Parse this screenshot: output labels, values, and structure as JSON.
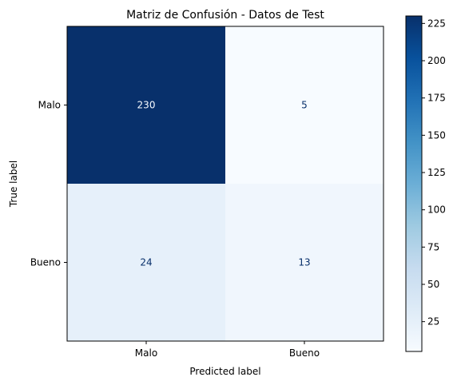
{
  "chart_data": {
    "type": "heatmap",
    "title": "Matriz de Confusión - Datos de Test",
    "xlabel": "Predicted label",
    "ylabel": "True label",
    "x_categories": [
      "Malo",
      "Bueno"
    ],
    "y_categories": [
      "Malo",
      "Bueno"
    ],
    "values": [
      [
        230,
        5
      ],
      [
        24,
        13
      ]
    ],
    "colormap": "Blues",
    "colorbar": {
      "min": 5,
      "max": 230,
      "ticks": [
        25,
        50,
        75,
        100,
        125,
        150,
        175,
        200,
        225
      ]
    },
    "colors": {
      "low": "#f7fbff",
      "high": "#08306b",
      "light_text": "#f7fbff",
      "dark_text": "#08306b"
    }
  }
}
